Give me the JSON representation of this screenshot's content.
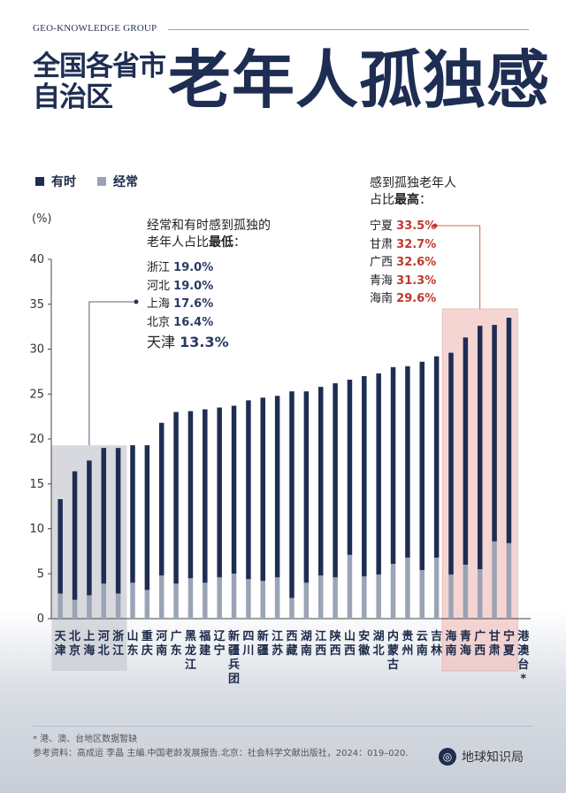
{
  "header": {
    "group": "GEO-KNOWLEDGE GROUP",
    "title_left": "全国各省市自治区",
    "title_right": "老年人孤独感"
  },
  "legend": [
    {
      "label": "有时",
      "color": "#1e2d52"
    },
    {
      "label": "经常",
      "color": "#9ba3b5"
    }
  ],
  "annotations": {
    "low_title_line1": "经常和有时感到孤独的",
    "low_title_line2": "老年人占比",
    "low_title_bold": "最低",
    "low_title_end": "：",
    "low_list": [
      {
        "name": "浙江",
        "value": "19.0%"
      },
      {
        "name": "河北",
        "value": "19.0%"
      },
      {
        "name": "上海",
        "value": "17.6%"
      },
      {
        "name": "北京",
        "value": "16.4%"
      },
      {
        "name": "天津",
        "value": "13.3%"
      }
    ],
    "high_title_line1": "感到孤独老年人",
    "high_title_line2": "占比",
    "high_title_bold": "最高",
    "high_title_end": "：",
    "high_list": [
      {
        "name": "宁夏",
        "value": "33.5%"
      },
      {
        "name": "甘肃",
        "value": "32.7%"
      },
      {
        "name": "广西",
        "value": "32.6%"
      },
      {
        "name": "青海",
        "value": "31.3%"
      },
      {
        "name": "海南",
        "value": "29.6%"
      }
    ]
  },
  "footer": {
    "note": "* 港、澳、台地区数据暂缺",
    "source": "参考资料：高成运 李晶 主编.中国老龄发展报告.北京：社会科学文献出版社，2024：019–020.",
    "brand": "地球知识局",
    "brand_icon": "globe-icon"
  },
  "colors": {
    "sometimes": "#1e2d52",
    "often": "#9ba3b5",
    "low_highlight": "#c9ccd3",
    "high_highlight": "#f2c7c4",
    "high_value": "#c0392b"
  },
  "chart_data": {
    "type": "bar",
    "stacked": true,
    "ylabel": "(%)",
    "ylim": [
      0,
      40
    ],
    "yticks": [
      0,
      5,
      10,
      15,
      20,
      25,
      30,
      35,
      40
    ],
    "categories": [
      "天津",
      "北京",
      "上海",
      "河北",
      "浙江",
      "山东",
      "重庆",
      "河南",
      "广东",
      "黑龙江",
      "福建",
      "辽宁",
      "新疆兵团",
      "四川",
      "新疆",
      "江苏",
      "西藏",
      "湖南",
      "江西",
      "陕西",
      "山西",
      "安徽",
      "湖北",
      "内蒙古",
      "贵州",
      "云南",
      "吉林",
      "海南",
      "青海",
      "广西",
      "甘肃",
      "宁夏",
      "港澳台*"
    ],
    "series": [
      {
        "name": "经常",
        "values": [
          2.8,
          2.1,
          2.6,
          3.9,
          2.8,
          4.0,
          3.2,
          4.8,
          3.9,
          4.5,
          4.0,
          4.6,
          5.0,
          4.4,
          4.2,
          4.6,
          2.3,
          4.0,
          4.8,
          4.6,
          7.1,
          4.7,
          4.9,
          6.1,
          6.8,
          5.4,
          6.8,
          4.9,
          6.0,
          5.5,
          8.6,
          8.4,
          0
        ]
      },
      {
        "name": "有时",
        "values": [
          10.5,
          14.3,
          15.0,
          15.1,
          16.2,
          15.3,
          16.1,
          17.0,
          19.1,
          18.6,
          19.3,
          18.9,
          18.7,
          19.9,
          20.4,
          20.2,
          23.0,
          21.3,
          21.0,
          21.6,
          19.5,
          22.3,
          22.4,
          21.9,
          21.3,
          23.2,
          22.4,
          24.7,
          25.3,
          27.1,
          24.1,
          25.1,
          0
        ]
      }
    ],
    "highlight_low": [
      "天津",
      "北京",
      "上海",
      "河北",
      "浙江"
    ],
    "highlight_high": [
      "海南",
      "青海",
      "广西",
      "甘肃",
      "宁夏"
    ]
  }
}
